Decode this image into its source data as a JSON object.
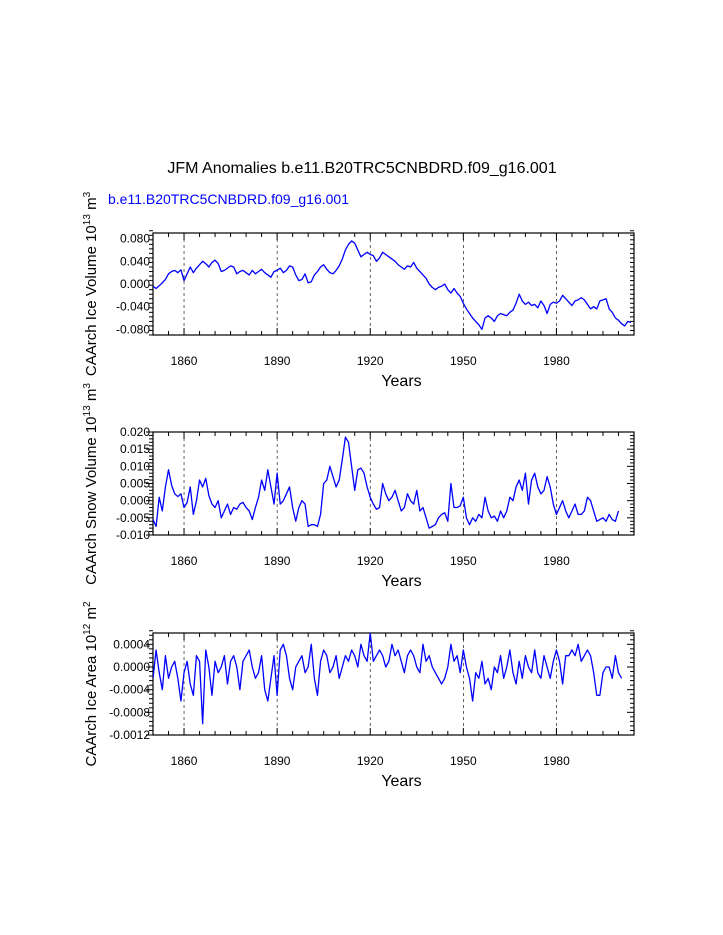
{
  "figure": {
    "title": "JFM Anomalies b.e11.B20TRC5CNBDRD.f09_g16.001",
    "series_label": "b.e11.B20TRC5CNBDRD.f09_g16.001",
    "series_color": "#0000ff"
  },
  "chart_data": [
    {
      "type": "line",
      "title": "",
      "ylabel": "CAArch Ice Volume",
      "ylabel_unit": "10",
      "ylabel_unit_exp": "13",
      "ylabel_unit_suffix": "m",
      "ylabel_unit_suffix_exp": "3",
      "xlabel": "Years",
      "xlim": [
        1850,
        2005
      ],
      "ylim": [
        -0.09,
        0.09
      ],
      "yticks": [
        -0.08,
        -0.04,
        0.0,
        0.04,
        0.08
      ],
      "ytick_labels": [
        "-0.080",
        "-0.040",
        "0.000",
        "0.040",
        "0.080"
      ],
      "xticks": [
        1860,
        1890,
        1920,
        1950,
        1980
      ],
      "xtick_labels": [
        "1860",
        "1890",
        "1920",
        "1950",
        "1980"
      ],
      "series": [
        {
          "name": "b.e11.B20TRC5CNBDRD.f09_g16.001",
          "x_start": 1850,
          "values": [
            -0.004,
            -0.008,
            -0.003,
            0.002,
            0.008,
            0.018,
            0.022,
            0.024,
            0.02,
            0.025,
            0.006,
            0.018,
            0.03,
            0.02,
            0.028,
            0.034,
            0.04,
            0.036,
            0.03,
            0.038,
            0.042,
            0.036,
            0.022,
            0.024,
            0.028,
            0.032,
            0.03,
            0.018,
            0.022,
            0.024,
            0.02,
            0.016,
            0.024,
            0.018,
            0.022,
            0.026,
            0.02,
            0.016,
            0.012,
            0.022,
            0.024,
            0.028,
            0.02,
            0.024,
            0.032,
            0.03,
            0.016,
            0.006,
            0.008,
            0.018,
            0.002,
            0.004,
            0.016,
            0.022,
            0.03,
            0.034,
            0.026,
            0.02,
            0.018,
            0.024,
            0.032,
            0.044,
            0.06,
            0.07,
            0.076,
            0.072,
            0.06,
            0.048,
            0.052,
            0.056,
            0.052,
            0.05,
            0.04,
            0.046,
            0.056,
            0.052,
            0.048,
            0.044,
            0.04,
            0.034,
            0.03,
            0.026,
            0.032,
            0.03,
            0.038,
            0.028,
            0.022,
            0.016,
            0.01,
            0.0,
            -0.006,
            -0.01,
            -0.006,
            -0.004,
            0.0,
            -0.01,
            -0.016,
            -0.008,
            -0.016,
            -0.022,
            -0.034,
            -0.044,
            -0.052,
            -0.06,
            -0.066,
            -0.072,
            -0.08,
            -0.06,
            -0.056,
            -0.06,
            -0.066,
            -0.056,
            -0.052,
            -0.054,
            -0.056,
            -0.05,
            -0.046,
            -0.034,
            -0.018,
            -0.03,
            -0.036,
            -0.032,
            -0.038,
            -0.036,
            -0.042,
            -0.03,
            -0.038,
            -0.052,
            -0.036,
            -0.032,
            -0.034,
            -0.03,
            -0.02,
            -0.026,
            -0.032,
            -0.038,
            -0.03,
            -0.028,
            -0.024,
            -0.028,
            -0.036,
            -0.044,
            -0.04,
            -0.044,
            -0.03,
            -0.028,
            -0.026,
            -0.044,
            -0.05,
            -0.06,
            -0.064,
            -0.07,
            -0.074,
            -0.066,
            -0.068
          ]
        }
      ]
    },
    {
      "type": "line",
      "title": "",
      "ylabel": "CAArch Snow Volume",
      "ylabel_unit": "10",
      "ylabel_unit_exp": "13",
      "ylabel_unit_suffix": "m",
      "ylabel_unit_suffix_exp": "3",
      "xlabel": "Years",
      "xlim": [
        1850,
        2005
      ],
      "ylim": [
        -0.01,
        0.02
      ],
      "yticks": [
        -0.01,
        -0.005,
        0.0,
        0.005,
        0.01,
        0.015,
        0.02
      ],
      "ytick_labels": [
        "-0.010",
        "-0.005",
        "0.000",
        "0.005",
        "0.010",
        "0.015",
        "0.020"
      ],
      "xticks": [
        1860,
        1890,
        1920,
        1950,
        1980
      ],
      "xtick_labels": [
        "1860",
        "1890",
        "1920",
        "1950",
        "1980"
      ],
      "series": [
        {
          "name": "b.e11.B20TRC5CNBDRD.f09_g16.001",
          "x_start": 1850,
          "values": [
            -0.0055,
            -0.0075,
            0.001,
            -0.003,
            0.004,
            0.009,
            0.0045,
            0.002,
            0.0012,
            0.002,
            -0.002,
            -0.0005,
            0.004,
            -0.004,
            0.0,
            0.006,
            0.004,
            0.0065,
            0.0015,
            -0.001,
            -0.002,
            0.0,
            -0.005,
            -0.003,
            -0.001,
            -0.004,
            -0.002,
            -0.0025,
            -0.001,
            -0.0005,
            -0.002,
            -0.003,
            -0.0055,
            -0.002,
            0.001,
            0.006,
            0.003,
            0.009,
            0.004,
            -0.001,
            0.008,
            -0.001,
            0.0,
            0.002,
            0.004,
            -0.002,
            -0.006,
            -0.002,
            0.0,
            -0.001,
            -0.0075,
            -0.007,
            -0.007,
            -0.0075,
            -0.004,
            0.005,
            0.006,
            0.01,
            0.007,
            0.004,
            0.006,
            0.012,
            0.0185,
            0.017,
            0.01,
            0.003,
            0.009,
            0.0095,
            0.008,
            0.004,
            0.001,
            -0.001,
            -0.0025,
            -0.002,
            0.005,
            0.002,
            0.0,
            0.001,
            0.003,
            0.0,
            -0.003,
            -0.002,
            0.002,
            0.0,
            -0.001,
            0.003,
            -0.003,
            -0.002,
            -0.005,
            -0.008,
            -0.0075,
            -0.007,
            -0.005,
            -0.004,
            -0.0035,
            -0.006,
            0.005,
            -0.002,
            -0.002,
            -0.0015,
            0.001,
            -0.005,
            -0.007,
            -0.005,
            -0.006,
            -0.004,
            -0.005,
            0.001,
            -0.003,
            -0.005,
            -0.0045,
            -0.006,
            -0.003,
            -0.005,
            -0.003,
            0.001,
            0.0,
            0.004,
            0.006,
            0.003,
            0.008,
            -0.001,
            0.006,
            0.008,
            0.004,
            0.002,
            0.003,
            0.007,
            0.004,
            -0.001,
            -0.004,
            -0.002,
            0.0,
            -0.003,
            -0.005,
            -0.003,
            -0.001,
            -0.004,
            -0.004,
            -0.003,
            0.001,
            0.0,
            -0.003,
            -0.006,
            -0.0055,
            -0.005,
            -0.006,
            -0.004,
            -0.0055,
            -0.006,
            -0.003
          ]
        }
      ]
    },
    {
      "type": "line",
      "title": "",
      "ylabel": "CAArch Ice Area",
      "ylabel_unit": "10",
      "ylabel_unit_exp": "12",
      "ylabel_unit_suffix": "m",
      "ylabel_unit_suffix_exp": "2",
      "xlabel": "Years",
      "xlim": [
        1850,
        2005
      ],
      "ylim": [
        -0.0012,
        0.0006
      ],
      "yticks": [
        -0.0012,
        -0.0008,
        -0.0004,
        0.0,
        0.0004
      ],
      "ytick_labels": [
        "-0.0012",
        "-0.0008",
        "-0.0004",
        "0.0000",
        "0.0004"
      ],
      "xticks": [
        1860,
        1890,
        1920,
        1950,
        1980
      ],
      "xtick_labels": [
        "1860",
        "1890",
        "1920",
        "1950",
        "1980"
      ],
      "series": [
        {
          "name": "b.e11.B20TRC5CNBDRD.f09_g16.001",
          "x_start": 1850,
          "values": [
            -0.0002,
            0.0003,
            -0.0001,
            -0.0004,
            0.0002,
            -0.0002,
            0.0,
            0.0001,
            -0.0002,
            -0.0006,
            -0.0001,
            0.0001,
            -0.0003,
            -0.0005,
            0.0002,
            0.0001,
            -0.001,
            0.0003,
            0.0,
            -0.0005,
            0.0001,
            -0.0001,
            0.0,
            0.0002,
            -0.0003,
            0.0001,
            0.0002,
            0.0,
            -0.0004,
            0.0001,
            0.0002,
            0.0003,
            0.0,
            -0.0002,
            -0.0001,
            0.0002,
            -0.0004,
            -0.0006,
            -0.0002,
            0.0002,
            -0.0005,
            0.0003,
            0.0004,
            0.0002,
            -0.0002,
            -0.0004,
            0.0,
            0.0001,
            0.0002,
            -0.0001,
            0.0,
            0.0004,
            -0.0002,
            -0.0005,
            0.0001,
            0.0003,
            0.0002,
            -0.0001,
            0.0,
            0.0002,
            -0.0002,
            0.0,
            0.0002,
            0.0001,
            0.0003,
            0.0002,
            0.0,
            0.0004,
            0.0002,
            0.0001,
            0.0006,
            0.0001,
            0.0002,
            0.0003,
            0.0002,
            0.0,
            0.0001,
            0.0004,
            0.0002,
            0.0003,
            0.0001,
            -0.0001,
            0.0002,
            0.0003,
            0.0002,
            0.0,
            -0.0001,
            0.0004,
            0.0001,
            0.0002,
            0.0,
            -0.0001,
            -0.0002,
            -0.0003,
            -0.0002,
            0.0,
            0.0004,
            0.0001,
            0.0002,
            -0.0001,
            0.0003,
            0.0,
            -0.0002,
            -0.0006,
            -0.0001,
            -0.0002,
            0.0001,
            -0.0003,
            -0.0002,
            -0.0004,
            0.0,
            -0.0001,
            0.0002,
            -0.0002,
            0.0,
            0.0003,
            -0.0001,
            -0.0003,
            0.0001,
            -0.0002,
            0.0002,
            0.0,
            -0.0001,
            0.0003,
            -0.0001,
            -0.0002,
            0.0002,
            0.0,
            -0.0002,
            0.0001,
            0.0003,
            0.0001,
            -0.0003,
            0.0002,
            0.0002,
            0.0003,
            0.0002,
            0.0004,
            0.0001,
            0.0002,
            0.0003,
            0.0002,
            -0.0001,
            -0.0005,
            -0.0005,
            -0.0001,
            0.0,
            0.0,
            -0.0002,
            0.0002,
            -0.0001,
            -0.0002
          ]
        }
      ]
    }
  ]
}
